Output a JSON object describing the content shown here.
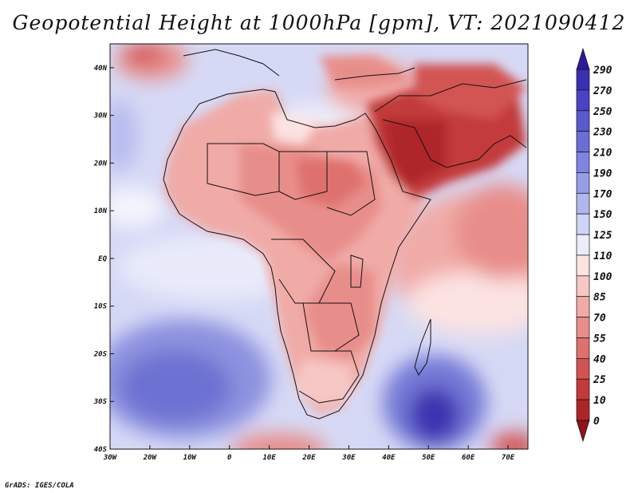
{
  "title": "Geopotential Height at 1000hPa [gpm], VT: 2021090412",
  "credit": "GrADS: IGES/COLA",
  "map": {
    "variable": "Geopotential Height",
    "level": "1000hPa",
    "units": "gpm",
    "valid_time": "2021090412",
    "region": "Africa",
    "lon_range": [
      -30,
      75
    ],
    "lat_range": [
      -40,
      45
    ],
    "x_ticks": [
      "30W",
      "20W",
      "10W",
      "0",
      "10E",
      "20E",
      "30E",
      "40E",
      "50E",
      "60E",
      "70E"
    ],
    "y_ticks": [
      "40N",
      "30N",
      "20N",
      "10N",
      "EQ",
      "10S",
      "20S",
      "30S",
      "40S"
    ]
  },
  "colorbar": {
    "levels": [
      "290",
      "270",
      "250",
      "230",
      "210",
      "190",
      "170",
      "150",
      "125",
      "110",
      "100",
      "85",
      "70",
      "55",
      "40",
      "25",
      "10",
      "0"
    ],
    "colors": [
      "#2a1a9c",
      "#3a2fb0",
      "#4a42c2",
      "#5a58cd",
      "#6b6ed6",
      "#7f84de",
      "#979de6",
      "#b1b7ee",
      "#cfd3f5",
      "#ecedfb",
      "#fbe3e2",
      "#f6c7c4",
      "#f0aba7",
      "#e88e8a",
      "#de716d",
      "#d25452",
      "#c33a3a",
      "#ae2529",
      "#8e1419"
    ]
  }
}
